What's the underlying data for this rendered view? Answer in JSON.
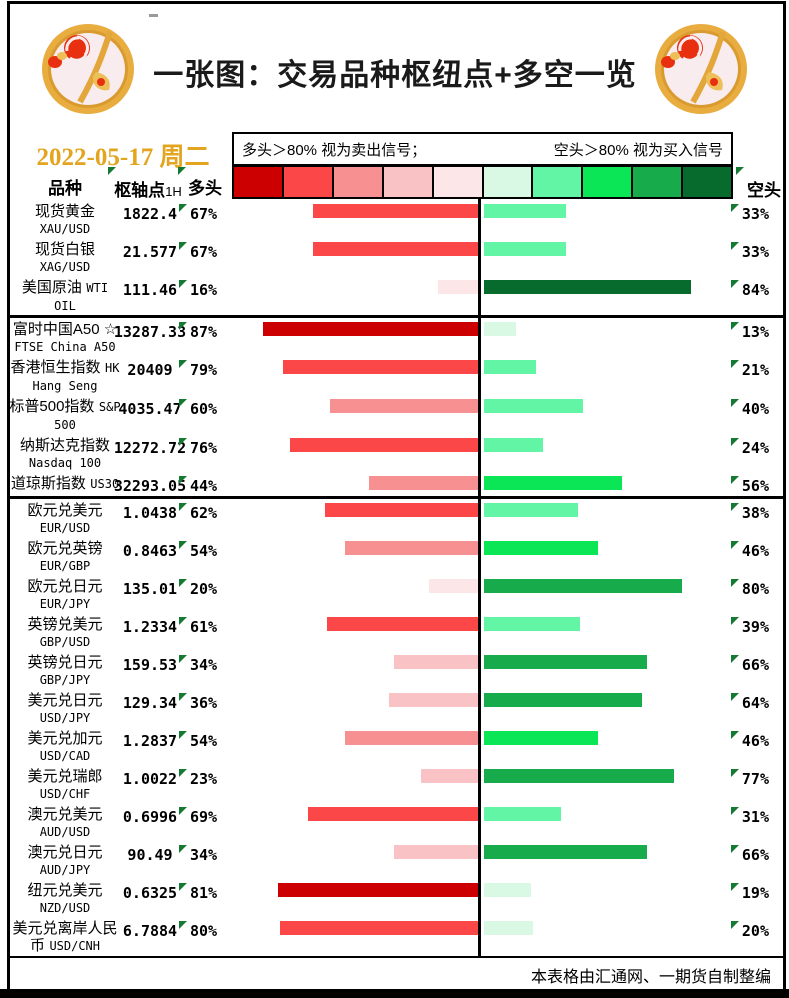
{
  "page": {
    "title": "一张图：交易品种枢纽点+多空一览",
    "date": "2022-05-17 周二",
    "footer": "本表格由汇通网、一期货自制整编"
  },
  "legend": {
    "long_note": "多头＞80% 视为卖出信号；",
    "short_note": "空头＞80% 视为买入信号"
  },
  "columns": {
    "instrument": "品种",
    "pivot": "枢轴点",
    "pivot_suffix": "1H",
    "long": "多头",
    "short": "空头"
  },
  "colors": {
    "date_text": "#e3a41f",
    "marker_green": "#157a31",
    "scale": [
      "#cc0000",
      "#fb4747",
      "#f79090",
      "#f9c3c5",
      "#fde6e8",
      "#d9f9e4",
      "#62f5a5",
      "#0be657",
      "#17ab4b",
      "#076b2d"
    ]
  },
  "chart_data": {
    "type": "bar",
    "orientation": "horizontal-diverging",
    "title": "一张图：交易品种枢纽点+多空一览",
    "value_unit": "%",
    "axis_center": 0,
    "side_max": 100,
    "legend_position": "top",
    "rows": [
      {
        "name": "现货黄金",
        "code": "XAU/USD",
        "pivot": "1822.4",
        "long": 67,
        "short": 33,
        "group": 1
      },
      {
        "name": "现货白银",
        "code": "XAG/USD",
        "pivot": "21.577",
        "long": 67,
        "short": 33,
        "group": 1
      },
      {
        "name": "美国原油",
        "code": "WTI OIL",
        "pivot": "111.46",
        "long": 16,
        "short": 84,
        "group": 1
      },
      {
        "name": "富时中国A50 ☆",
        "code": "FTSE China A50",
        "pivot": "13287.33",
        "long": 87,
        "short": 13,
        "group": 2
      },
      {
        "name": "香港恒生指数",
        "code": "HK Hang Seng",
        "pivot": "20409",
        "long": 79,
        "short": 21,
        "group": 2
      },
      {
        "name": "标普500指数",
        "code": "S&P 500",
        "pivot": "4035.47",
        "long": 60,
        "short": 40,
        "group": 2
      },
      {
        "name": "纳斯达克指数",
        "code": "Nasdaq 100",
        "pivot": "12272.72",
        "long": 76,
        "short": 24,
        "group": 2
      },
      {
        "name": "道琼斯指数",
        "code": "US30",
        "pivot": "32293.05",
        "long": 44,
        "short": 56,
        "group": 2
      },
      {
        "name": "欧元兑美元",
        "code": "EUR/USD",
        "pivot": "1.0438",
        "long": 62,
        "short": 38,
        "group": 3
      },
      {
        "name": "欧元兑英镑",
        "code": "EUR/GBP",
        "pivot": "0.8463",
        "long": 54,
        "short": 46,
        "group": 3
      },
      {
        "name": "欧元兑日元",
        "code": "EUR/JPY",
        "pivot": "135.01",
        "long": 20,
        "short": 80,
        "group": 3
      },
      {
        "name": "英镑兑美元",
        "code": "GBP/USD",
        "pivot": "1.2334",
        "long": 61,
        "short": 39,
        "group": 3
      },
      {
        "name": "英镑兑日元",
        "code": "GBP/JPY",
        "pivot": "159.53",
        "long": 34,
        "short": 66,
        "group": 3
      },
      {
        "name": "美元兑日元",
        "code": "USD/JPY",
        "pivot": "129.34",
        "long": 36,
        "short": 64,
        "group": 3
      },
      {
        "name": "美元兑加元",
        "code": "USD/CAD",
        "pivot": "1.2837",
        "long": 54,
        "short": 46,
        "group": 3
      },
      {
        "name": "美元兑瑞郎",
        "code": "USD/CHF",
        "pivot": "1.0022",
        "long": 23,
        "short": 77,
        "group": 3
      },
      {
        "name": "澳元兑美元",
        "code": "AUD/USD",
        "pivot": "0.6996",
        "long": 69,
        "short": 31,
        "group": 3
      },
      {
        "name": "澳元兑日元",
        "code": "AUD/JPY",
        "pivot": "90.49",
        "long": 34,
        "short": 66,
        "group": 3
      },
      {
        "name": "纽元兑美元",
        "code": "NZD/USD",
        "pivot": "0.6325",
        "long": 81,
        "short": 19,
        "group": 3
      },
      {
        "name": "美元兑离岸人民币",
        "code": "USD/CNH",
        "pivot": "6.7884",
        "long": 80,
        "short": 20,
        "group": 3
      }
    ]
  }
}
